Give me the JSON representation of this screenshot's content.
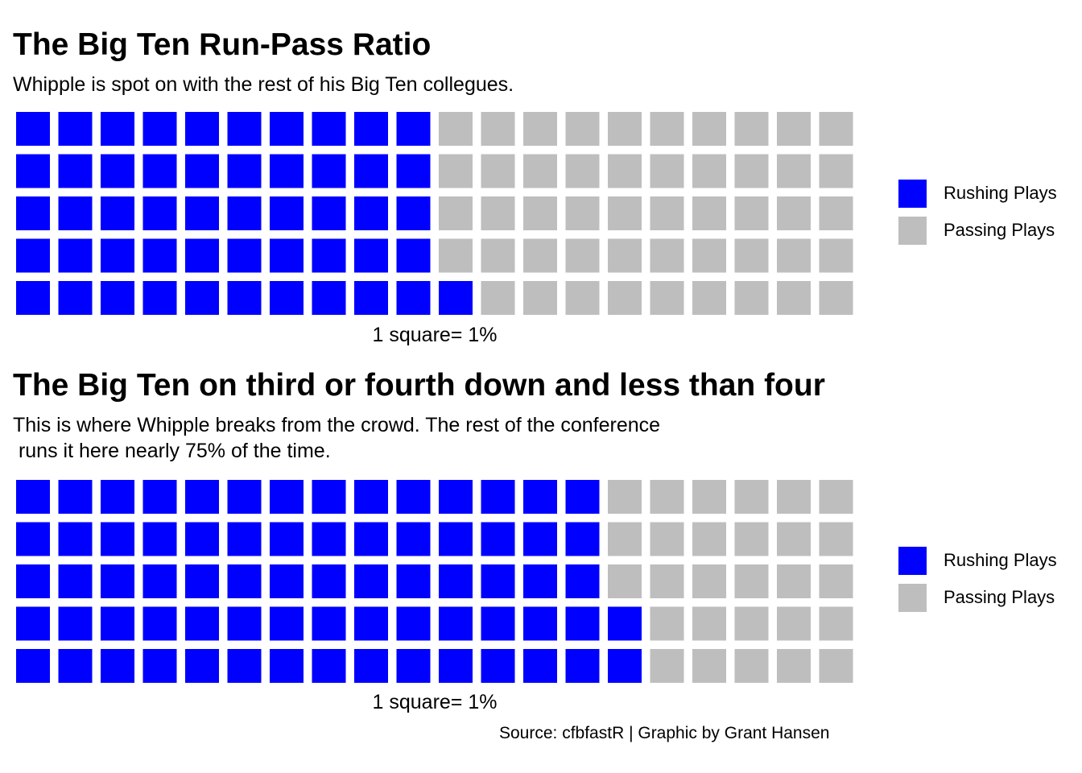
{
  "chart_data": [
    {
      "type": "waffle",
      "title": "The Big Ten Run-Pass Ratio",
      "subtitle": "Whipple is spot on with the rest of his Big Ten collegues.",
      "caption": "1 square= 1%",
      "rows": 5,
      "total_squares": 100,
      "series": [
        {
          "name": "Rushing Plays",
          "value": 51,
          "color": "#0000FF"
        },
        {
          "name": "Passing Plays",
          "value": 49,
          "color": "#BEBEBE"
        }
      ],
      "legend_position": "right"
    },
    {
      "type": "waffle",
      "title": "The Big Ten on third or fourth down and less than four",
      "subtitle": "This is where Whipple breaks from the crowd. The rest of the conference\n runs it here nearly 75% of the time.",
      "caption": "1 square= 1%",
      "rows": 5,
      "total_squares": 100,
      "series": [
        {
          "name": "Rushing Plays",
          "value": 72,
          "color": "#0000FF"
        },
        {
          "name": "Passing Plays",
          "value": 28,
          "color": "#BEBEBE"
        }
      ],
      "legend_position": "right"
    }
  ],
  "footer": {
    "source": "Source: cfbfastR | Graphic by Grant Hansen"
  }
}
